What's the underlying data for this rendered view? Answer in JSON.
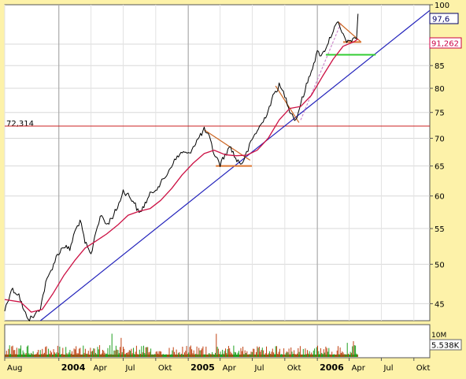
{
  "chart_data": {
    "type": "line",
    "title": "",
    "y_scale": "log",
    "ylim": [
      43,
      100
    ],
    "xlim": [
      "2003-08-01",
      "2006-11-15"
    ],
    "yticks": [
      45,
      50,
      55,
      60,
      65,
      70,
      75,
      80,
      85,
      90,
      100
    ],
    "ytick_labels": [
      "45",
      "50",
      "55",
      "60",
      "65",
      "70",
      "75",
      "80",
      "85",
      "90",
      "100"
    ],
    "xticks": [
      {
        "date": "2003-08-01",
        "label": "Aug"
      },
      {
        "date": "2004-01-01",
        "label": "2004"
      },
      {
        "date": "2004-04-01",
        "label": "Apr"
      },
      {
        "date": "2004-07-01",
        "label": "Jul"
      },
      {
        "date": "2004-10-01",
        "label": "Okt"
      },
      {
        "date": "2005-01-01",
        "label": "2005"
      },
      {
        "date": "2005-04-01",
        "label": "Apr"
      },
      {
        "date": "2005-07-01",
        "label": "Jul"
      },
      {
        "date": "2005-10-01",
        "label": "Okt"
      },
      {
        "date": "2006-01-01",
        "label": "2006"
      },
      {
        "date": "2006-04-01",
        "label": "Apr"
      },
      {
        "date": "2006-07-01",
        "label": "Jul"
      },
      {
        "date": "2006-10-01",
        "label": "Okt"
      }
    ],
    "bold_year_ticks": [
      "2004",
      "2005",
      "2006"
    ],
    "grid": true,
    "series": [
      {
        "role": "price",
        "color": "#000000",
        "points": [
          [
            "2003-08-01",
            44.2
          ],
          [
            "2003-08-20",
            46.8
          ],
          [
            "2003-09-10",
            46.1
          ],
          [
            "2003-09-25",
            44.0
          ],
          [
            "2003-10-10",
            43.2
          ],
          [
            "2003-10-25",
            43.6
          ],
          [
            "2003-11-10",
            44.6
          ],
          [
            "2003-11-25",
            47.5
          ],
          [
            "2003-12-10",
            49.2
          ],
          [
            "2003-12-28",
            51.3
          ],
          [
            "2004-01-15",
            52.5
          ],
          [
            "2004-02-01",
            52.0
          ],
          [
            "2004-02-15",
            54.5
          ],
          [
            "2004-03-01",
            56.2
          ],
          [
            "2004-03-15",
            53.0
          ],
          [
            "2004-04-01",
            51.2
          ],
          [
            "2004-04-15",
            54.8
          ],
          [
            "2004-05-01",
            57.0
          ],
          [
            "2004-05-15",
            55.5
          ],
          [
            "2004-06-01",
            56.8
          ],
          [
            "2004-06-15",
            58.2
          ],
          [
            "2004-07-01",
            60.8
          ],
          [
            "2004-07-15",
            60.2
          ],
          [
            "2004-08-01",
            59.0
          ],
          [
            "2004-08-15",
            57.2
          ],
          [
            "2004-09-01",
            58.8
          ],
          [
            "2004-09-15",
            60.2
          ],
          [
            "2004-10-01",
            61.2
          ],
          [
            "2004-10-15",
            62.0
          ],
          [
            "2004-11-01",
            63.5
          ],
          [
            "2004-11-15",
            65.2
          ],
          [
            "2004-12-01",
            66.5
          ],
          [
            "2004-12-15",
            67.5
          ],
          [
            "2005-01-01",
            67.0
          ],
          [
            "2005-01-15",
            68.5
          ],
          [
            "2005-02-01",
            70.2
          ],
          [
            "2005-02-15",
            71.6
          ],
          [
            "2005-03-01",
            70.2
          ],
          [
            "2005-03-15",
            67.2
          ],
          [
            "2005-04-01",
            65.3
          ],
          [
            "2005-04-15",
            67.0
          ],
          [
            "2005-05-01",
            68.5
          ],
          [
            "2005-05-15",
            66.2
          ],
          [
            "2005-06-01",
            65.4
          ],
          [
            "2005-06-15",
            67.2
          ],
          [
            "2005-07-01",
            69.8
          ],
          [
            "2005-07-15",
            71.5
          ],
          [
            "2005-08-01",
            73.2
          ],
          [
            "2005-08-15",
            75.5
          ],
          [
            "2005-09-01",
            78.8
          ],
          [
            "2005-09-15",
            80.6
          ],
          [
            "2005-10-01",
            78.5
          ],
          [
            "2005-10-15",
            75.5
          ],
          [
            "2005-11-01",
            73.4
          ],
          [
            "2005-11-15",
            76.8
          ],
          [
            "2005-12-01",
            80.5
          ],
          [
            "2005-12-15",
            84.0
          ],
          [
            "2006-01-01",
            88.0
          ],
          [
            "2006-01-15",
            87.5
          ],
          [
            "2006-02-01",
            90.5
          ],
          [
            "2006-02-15",
            93.5
          ],
          [
            "2006-03-01",
            95.2
          ],
          [
            "2006-03-15",
            92.0
          ],
          [
            "2006-04-01",
            90.2
          ],
          [
            "2006-04-15",
            91.8
          ],
          [
            "2006-04-22",
            91.3
          ],
          [
            "2006-04-26",
            97.6
          ]
        ]
      },
      {
        "role": "moving-average",
        "color": "#cc1144",
        "points": [
          [
            "2003-08-01",
            45.5
          ],
          [
            "2003-09-15",
            45.2
          ],
          [
            "2003-10-15",
            44.0
          ],
          [
            "2003-11-15",
            44.3
          ],
          [
            "2003-12-15",
            46.2
          ],
          [
            "2004-01-15",
            48.5
          ],
          [
            "2004-02-15",
            50.5
          ],
          [
            "2004-03-15",
            52.2
          ],
          [
            "2004-04-15",
            53.2
          ],
          [
            "2004-05-15",
            54.2
          ],
          [
            "2004-06-15",
            55.5
          ],
          [
            "2004-07-15",
            57.0
          ],
          [
            "2004-08-15",
            57.6
          ],
          [
            "2004-09-15",
            58.0
          ],
          [
            "2004-10-15",
            59.3
          ],
          [
            "2004-11-15",
            61.2
          ],
          [
            "2004-12-15",
            63.5
          ],
          [
            "2005-01-15",
            65.5
          ],
          [
            "2005-02-15",
            67.2
          ],
          [
            "2005-03-15",
            67.8
          ],
          [
            "2005-04-15",
            67.0
          ],
          [
            "2005-05-15",
            66.8
          ],
          [
            "2005-06-15",
            66.9
          ],
          [
            "2005-07-15",
            67.8
          ],
          [
            "2005-08-15",
            70.0
          ],
          [
            "2005-09-15",
            73.5
          ],
          [
            "2005-10-15",
            75.8
          ],
          [
            "2005-11-15",
            76.2
          ],
          [
            "2005-12-15",
            78.5
          ],
          [
            "2006-01-15",
            82.5
          ],
          [
            "2006-02-15",
            86.5
          ],
          [
            "2006-03-15",
            89.5
          ],
          [
            "2006-04-15",
            90.6
          ],
          [
            "2006-04-26",
            91.262
          ]
        ]
      }
    ],
    "trendlines": [
      {
        "role": "long-term-support",
        "color": "#2222bb",
        "from": [
          "2003-11-10",
          43.0
        ],
        "to": [
          "2006-11-15",
          98.5
        ]
      },
      {
        "role": "short-term-support",
        "color": "#cc88cc",
        "dashed": true,
        "from": [
          "2005-11-15",
          73.5
        ],
        "to": [
          "2006-03-10",
          95.5
        ]
      },
      {
        "role": "resistance",
        "color": "#cc6622",
        "from": [
          "2005-02-15",
          71.6
        ],
        "to": [
          "2005-06-25",
          66.0
        ]
      },
      {
        "role": "resistance",
        "color": "#cc6622",
        "from": [
          "2005-09-05",
          80.5
        ],
        "to": [
          "2005-11-10",
          73.0
        ]
      },
      {
        "role": "resistance",
        "color": "#cc6622",
        "from": [
          "2006-03-01",
          95.5
        ],
        "to": [
          "2006-05-05",
          90.5
        ]
      },
      {
        "role": "support",
        "color": "#dd7733",
        "from": [
          "2005-03-20",
          65.0
        ],
        "to": [
          "2005-06-30",
          65.0
        ]
      },
      {
        "role": "support",
        "color": "#dd7733",
        "from": [
          "2006-03-15",
          90.5
        ],
        "to": [
          "2006-05-05",
          90.5
        ]
      },
      {
        "role": "support",
        "color": "#33cc33",
        "from": [
          "2006-01-25",
          87.5
        ],
        "to": [
          "2006-06-15",
          87.5
        ]
      }
    ],
    "reference_line": {
      "value": 72.314,
      "label": "72,314",
      "color": "#cc2222"
    },
    "last_price": {
      "value": 97.6,
      "label": "97,6",
      "color": "#000066"
    },
    "ma_last": {
      "value": 91.262,
      "label": "91,262",
      "color": "#cc0044"
    },
    "volume": {
      "ylim": [
        0,
        10
      ],
      "tick_label": "10M",
      "last_label": "5.538K",
      "bar_color": "#c04010",
      "fill_color": "#20a020"
    }
  }
}
